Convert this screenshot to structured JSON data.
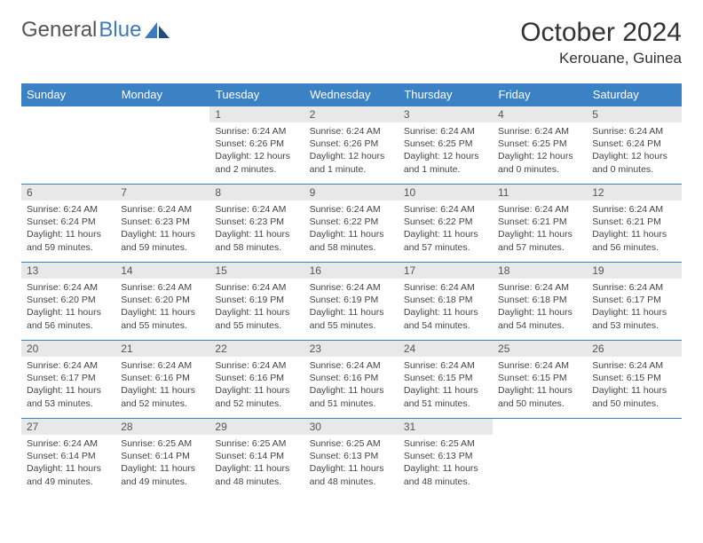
{
  "logo": {
    "text1": "General",
    "text2": "Blue"
  },
  "title": "October 2024",
  "location": "Kerouane, Guinea",
  "colors": {
    "header_bg": "#3b82c4",
    "header_text": "#ffffff",
    "daynum_bg": "#e8e8e8",
    "border": "#3b82c4",
    "logo_blue": "#3b7bbf"
  },
  "day_headers": [
    "Sunday",
    "Monday",
    "Tuesday",
    "Wednesday",
    "Thursday",
    "Friday",
    "Saturday"
  ],
  "weeks": [
    [
      null,
      null,
      {
        "n": "1",
        "sr": "Sunrise: 6:24 AM",
        "ss": "Sunset: 6:26 PM",
        "dl": "Daylight: 12 hours and 2 minutes."
      },
      {
        "n": "2",
        "sr": "Sunrise: 6:24 AM",
        "ss": "Sunset: 6:26 PM",
        "dl": "Daylight: 12 hours and 1 minute."
      },
      {
        "n": "3",
        "sr": "Sunrise: 6:24 AM",
        "ss": "Sunset: 6:25 PM",
        "dl": "Daylight: 12 hours and 1 minute."
      },
      {
        "n": "4",
        "sr": "Sunrise: 6:24 AM",
        "ss": "Sunset: 6:25 PM",
        "dl": "Daylight: 12 hours and 0 minutes."
      },
      {
        "n": "5",
        "sr": "Sunrise: 6:24 AM",
        "ss": "Sunset: 6:24 PM",
        "dl": "Daylight: 12 hours and 0 minutes."
      }
    ],
    [
      {
        "n": "6",
        "sr": "Sunrise: 6:24 AM",
        "ss": "Sunset: 6:24 PM",
        "dl": "Daylight: 11 hours and 59 minutes."
      },
      {
        "n": "7",
        "sr": "Sunrise: 6:24 AM",
        "ss": "Sunset: 6:23 PM",
        "dl": "Daylight: 11 hours and 59 minutes."
      },
      {
        "n": "8",
        "sr": "Sunrise: 6:24 AM",
        "ss": "Sunset: 6:23 PM",
        "dl": "Daylight: 11 hours and 58 minutes."
      },
      {
        "n": "9",
        "sr": "Sunrise: 6:24 AM",
        "ss": "Sunset: 6:22 PM",
        "dl": "Daylight: 11 hours and 58 minutes."
      },
      {
        "n": "10",
        "sr": "Sunrise: 6:24 AM",
        "ss": "Sunset: 6:22 PM",
        "dl": "Daylight: 11 hours and 57 minutes."
      },
      {
        "n": "11",
        "sr": "Sunrise: 6:24 AM",
        "ss": "Sunset: 6:21 PM",
        "dl": "Daylight: 11 hours and 57 minutes."
      },
      {
        "n": "12",
        "sr": "Sunrise: 6:24 AM",
        "ss": "Sunset: 6:21 PM",
        "dl": "Daylight: 11 hours and 56 minutes."
      }
    ],
    [
      {
        "n": "13",
        "sr": "Sunrise: 6:24 AM",
        "ss": "Sunset: 6:20 PM",
        "dl": "Daylight: 11 hours and 56 minutes."
      },
      {
        "n": "14",
        "sr": "Sunrise: 6:24 AM",
        "ss": "Sunset: 6:20 PM",
        "dl": "Daylight: 11 hours and 55 minutes."
      },
      {
        "n": "15",
        "sr": "Sunrise: 6:24 AM",
        "ss": "Sunset: 6:19 PM",
        "dl": "Daylight: 11 hours and 55 minutes."
      },
      {
        "n": "16",
        "sr": "Sunrise: 6:24 AM",
        "ss": "Sunset: 6:19 PM",
        "dl": "Daylight: 11 hours and 55 minutes."
      },
      {
        "n": "17",
        "sr": "Sunrise: 6:24 AM",
        "ss": "Sunset: 6:18 PM",
        "dl": "Daylight: 11 hours and 54 minutes."
      },
      {
        "n": "18",
        "sr": "Sunrise: 6:24 AM",
        "ss": "Sunset: 6:18 PM",
        "dl": "Daylight: 11 hours and 54 minutes."
      },
      {
        "n": "19",
        "sr": "Sunrise: 6:24 AM",
        "ss": "Sunset: 6:17 PM",
        "dl": "Daylight: 11 hours and 53 minutes."
      }
    ],
    [
      {
        "n": "20",
        "sr": "Sunrise: 6:24 AM",
        "ss": "Sunset: 6:17 PM",
        "dl": "Daylight: 11 hours and 53 minutes."
      },
      {
        "n": "21",
        "sr": "Sunrise: 6:24 AM",
        "ss": "Sunset: 6:16 PM",
        "dl": "Daylight: 11 hours and 52 minutes."
      },
      {
        "n": "22",
        "sr": "Sunrise: 6:24 AM",
        "ss": "Sunset: 6:16 PM",
        "dl": "Daylight: 11 hours and 52 minutes."
      },
      {
        "n": "23",
        "sr": "Sunrise: 6:24 AM",
        "ss": "Sunset: 6:16 PM",
        "dl": "Daylight: 11 hours and 51 minutes."
      },
      {
        "n": "24",
        "sr": "Sunrise: 6:24 AM",
        "ss": "Sunset: 6:15 PM",
        "dl": "Daylight: 11 hours and 51 minutes."
      },
      {
        "n": "25",
        "sr": "Sunrise: 6:24 AM",
        "ss": "Sunset: 6:15 PM",
        "dl": "Daylight: 11 hours and 50 minutes."
      },
      {
        "n": "26",
        "sr": "Sunrise: 6:24 AM",
        "ss": "Sunset: 6:15 PM",
        "dl": "Daylight: 11 hours and 50 minutes."
      }
    ],
    [
      {
        "n": "27",
        "sr": "Sunrise: 6:24 AM",
        "ss": "Sunset: 6:14 PM",
        "dl": "Daylight: 11 hours and 49 minutes."
      },
      {
        "n": "28",
        "sr": "Sunrise: 6:25 AM",
        "ss": "Sunset: 6:14 PM",
        "dl": "Daylight: 11 hours and 49 minutes."
      },
      {
        "n": "29",
        "sr": "Sunrise: 6:25 AM",
        "ss": "Sunset: 6:14 PM",
        "dl": "Daylight: 11 hours and 48 minutes."
      },
      {
        "n": "30",
        "sr": "Sunrise: 6:25 AM",
        "ss": "Sunset: 6:13 PM",
        "dl": "Daylight: 11 hours and 48 minutes."
      },
      {
        "n": "31",
        "sr": "Sunrise: 6:25 AM",
        "ss": "Sunset: 6:13 PM",
        "dl": "Daylight: 11 hours and 48 minutes."
      },
      null,
      null
    ]
  ]
}
